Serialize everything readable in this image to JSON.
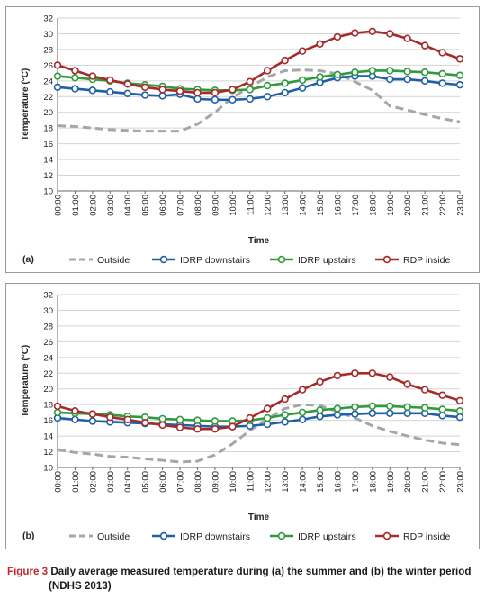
{
  "chart_data": [
    {
      "type": "line",
      "panel_label": "(a)",
      "xlabel": "Time",
      "ylabel": "Temperature (°C)",
      "ylim": [
        10,
        32
      ],
      "yticks": [
        10,
        12,
        14,
        16,
        18,
        20,
        22,
        24,
        26,
        28,
        30,
        32
      ],
      "grid": "horizontal",
      "legend_position": "bottom",
      "categories": [
        "00:00",
        "01:00",
        "02:00",
        "03:00",
        "04:00",
        "05:00",
        "06:00",
        "07:00",
        "08:00",
        "09:00",
        "10:00",
        "11:00",
        "12:00",
        "13:00",
        "14:00",
        "15:00",
        "16:00",
        "17:00",
        "18:00",
        "19:00",
        "20:00",
        "21:00",
        "22:00",
        "23:00"
      ],
      "series": [
        {
          "name": "Outside",
          "color": "#a6a6a6",
          "style": "dashed",
          "values": [
            18.3,
            18.2,
            18.0,
            17.8,
            17.7,
            17.6,
            17.6,
            17.6,
            18.5,
            20.0,
            21.9,
            23.2,
            24.5,
            25.3,
            25.4,
            25.3,
            24.9,
            23.9,
            22.8,
            20.8,
            20.3,
            19.7,
            19.2,
            18.8
          ]
        },
        {
          "name": "IDRP downstairs",
          "color": "#1f5fa8",
          "style": "solid",
          "values": [
            23.2,
            23.0,
            22.8,
            22.6,
            22.4,
            22.2,
            22.1,
            22.3,
            21.7,
            21.6,
            21.6,
            21.7,
            22.0,
            22.5,
            23.1,
            23.8,
            24.4,
            24.6,
            24.6,
            24.2,
            24.2,
            24.0,
            23.7,
            23.5
          ]
        },
        {
          "name": "IDRP upstairs",
          "color": "#2f9a3e",
          "style": "solid",
          "values": [
            24.6,
            24.4,
            24.2,
            24.0,
            23.7,
            23.5,
            23.3,
            23.0,
            22.9,
            22.8,
            22.8,
            22.9,
            23.4,
            23.7,
            24.1,
            24.5,
            24.8,
            25.1,
            25.3,
            25.3,
            25.2,
            25.1,
            24.9,
            24.7
          ]
        },
        {
          "name": "RDP inside",
          "color": "#a52a2a",
          "style": "solid",
          "values": [
            26.0,
            25.3,
            24.6,
            24.1,
            23.6,
            23.2,
            22.9,
            22.7,
            22.5,
            22.5,
            22.9,
            23.9,
            25.3,
            26.6,
            27.8,
            28.7,
            29.6,
            30.1,
            30.3,
            30.0,
            29.4,
            28.5,
            27.6,
            26.8
          ]
        }
      ]
    },
    {
      "type": "line",
      "panel_label": "(b)",
      "xlabel": "Time",
      "ylabel": "Temperature (°C)",
      "ylim": [
        10,
        32
      ],
      "yticks": [
        10,
        12,
        14,
        16,
        18,
        20,
        22,
        24,
        26,
        28,
        30,
        32
      ],
      "grid": "horizontal",
      "legend_position": "bottom",
      "categories": [
        "00:00",
        "01:00",
        "02:00",
        "03:00",
        "04:00",
        "05:00",
        "06:00",
        "07:00",
        "08:00",
        "09:00",
        "10:00",
        "11:00",
        "12:00",
        "13:00",
        "14:00",
        "15:00",
        "16:00",
        "17:00",
        "18:00",
        "19:00",
        "20:00",
        "21:00",
        "22:00",
        "23:00"
      ],
      "series": [
        {
          "name": "Outside",
          "color": "#a6a6a6",
          "style": "dashed",
          "values": [
            12.3,
            11.9,
            11.7,
            11.4,
            11.3,
            11.1,
            10.9,
            10.7,
            10.8,
            11.6,
            13.0,
            14.7,
            16.2,
            17.5,
            18.0,
            17.9,
            17.1,
            16.3,
            15.3,
            14.6,
            14.0,
            13.5,
            13.1,
            12.9
          ]
        },
        {
          "name": "IDRP downstairs",
          "color": "#1f5fa8",
          "style": "solid",
          "values": [
            16.3,
            16.1,
            15.9,
            15.8,
            15.7,
            15.6,
            15.5,
            15.4,
            15.3,
            15.2,
            15.2,
            15.3,
            15.5,
            15.8,
            16.1,
            16.5,
            16.7,
            16.8,
            16.9,
            16.9,
            16.9,
            16.9,
            16.6,
            16.4
          ]
        },
        {
          "name": "IDRP upstairs",
          "color": "#2f9a3e",
          "style": "solid",
          "values": [
            17.0,
            16.9,
            16.8,
            16.7,
            16.5,
            16.4,
            16.2,
            16.1,
            16.0,
            15.9,
            15.9,
            16.0,
            16.3,
            16.7,
            17.0,
            17.3,
            17.5,
            17.7,
            17.8,
            17.8,
            17.7,
            17.6,
            17.4,
            17.2
          ]
        },
        {
          "name": "RDP inside",
          "color": "#a52a2a",
          "style": "solid",
          "values": [
            17.8,
            17.2,
            16.8,
            16.4,
            16.1,
            15.7,
            15.4,
            15.1,
            14.9,
            14.9,
            15.2,
            16.3,
            17.5,
            18.7,
            19.9,
            20.9,
            21.7,
            22.0,
            22.0,
            21.5,
            20.6,
            19.9,
            19.2,
            18.5
          ]
        }
      ]
    }
  ],
  "caption": {
    "figure_label": "Figure 3",
    "text": "Daily average measured temperature during (a) the summer and (b) the winter period",
    "text_line2": "(NDHS 2013)"
  }
}
